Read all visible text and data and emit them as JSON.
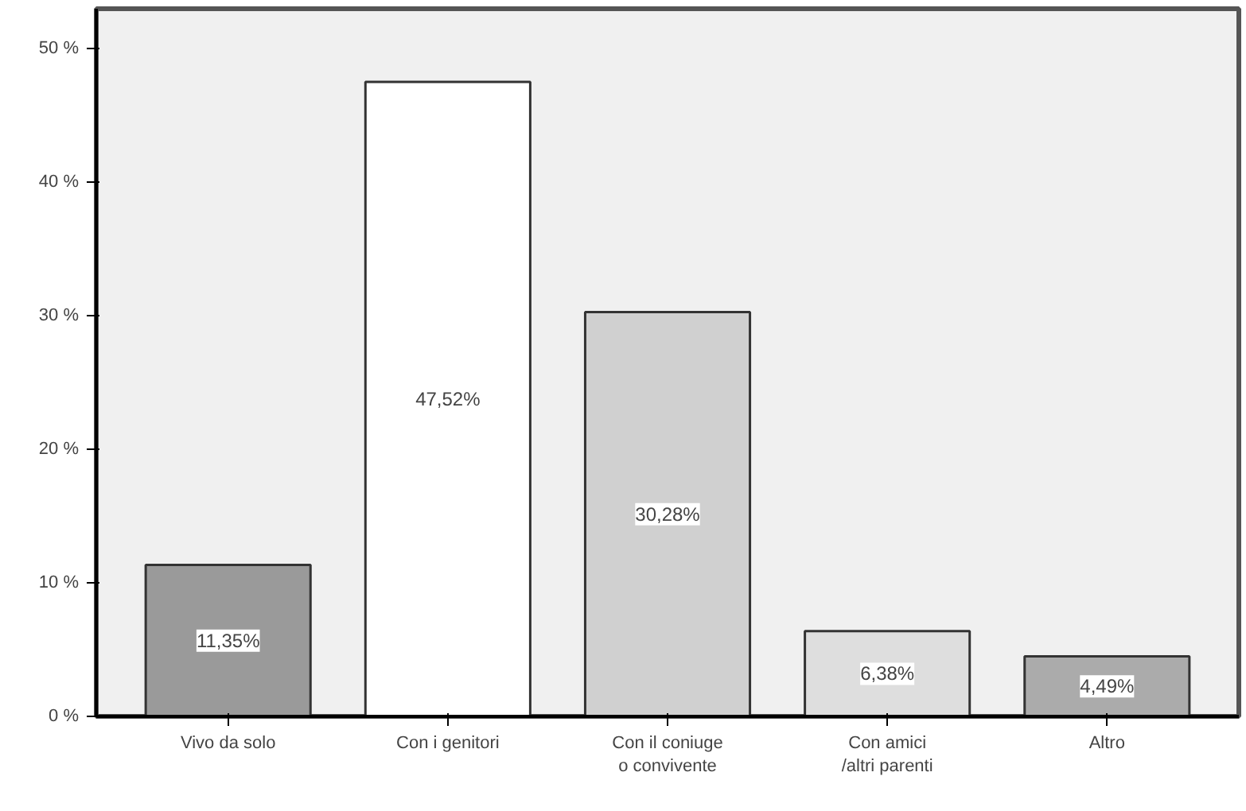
{
  "chart_data": {
    "type": "bar",
    "categories": [
      "Vivo da solo",
      "Con i genitori",
      "Con il coniuge\no convivente",
      "Con amici\n/altri parenti",
      "Altro"
    ],
    "values": [
      11.35,
      47.52,
      30.28,
      6.38,
      4.49
    ],
    "value_labels": [
      "11,35%",
      "47,52%",
      "30,28%",
      "6,38%",
      "4,49%"
    ],
    "colors": [
      "#9a9a9a",
      "#ffffff",
      "#d0d0d0",
      "#dedede",
      "#ababab"
    ],
    "ylim": [
      0,
      53
    ],
    "yticks": [
      {
        "value": 0,
        "label": "0 %"
      },
      {
        "value": 10,
        "label": "10 %"
      },
      {
        "value": 20,
        "label": "20 %"
      },
      {
        "value": 30,
        "label": "30 %"
      },
      {
        "value": 40,
        "label": "40 %"
      },
      {
        "value": 50,
        "label": "50 %"
      }
    ],
    "grid": false
  }
}
